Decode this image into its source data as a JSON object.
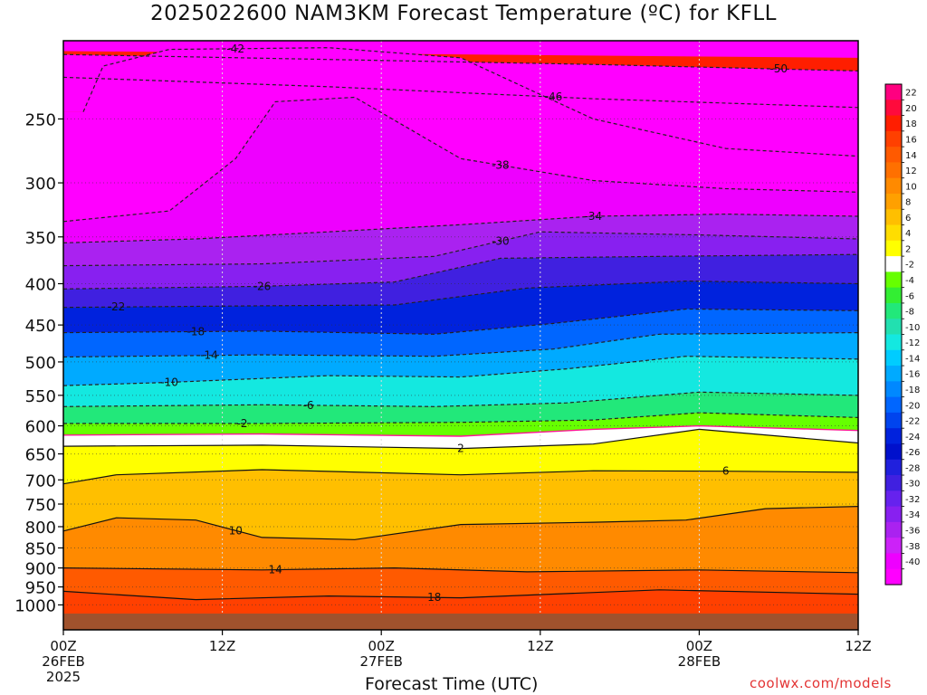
{
  "chart_data": {
    "type": "heatmap",
    "title": "2025022600 NAM3KM Forecast Temperature (ºC) for KFLL",
    "xlabel": "Forecast Time (UTC)",
    "ylabel": "",
    "x_ticks": [
      {
        "hours": 0,
        "lines": [
          "00Z",
          "26FEB",
          "2025"
        ]
      },
      {
        "hours": 12,
        "lines": [
          "12Z"
        ]
      },
      {
        "hours": 24,
        "lines": [
          "00Z",
          "27FEB"
        ]
      },
      {
        "hours": 36,
        "lines": [
          "12Z"
        ]
      },
      {
        "hours": 48,
        "lines": [
          "00Z",
          "28FEB"
        ]
      },
      {
        "hours": 60,
        "lines": [
          "12Z"
        ]
      }
    ],
    "xlim_hours": [
      0,
      60
    ],
    "y_ticks_hpa": [
      250,
      300,
      350,
      400,
      450,
      500,
      550,
      600,
      650,
      700,
      750,
      800,
      850,
      900,
      950,
      1000
    ],
    "ylim_hpa": [
      200,
      1025
    ],
    "y_scale": "log-pressure (inverted)",
    "grid": true,
    "colorbar": {
      "ticks": [
        22,
        20,
        18,
        16,
        14,
        12,
        10,
        8,
        6,
        4,
        2,
        -2,
        -4,
        -6,
        -8,
        -10,
        -12,
        -14,
        -16,
        -18,
        -20,
        -22,
        -24,
        -26,
        -28,
        -30,
        -32,
        -34,
        -36,
        -38,
        -40
      ],
      "colors": [
        "#ff0080",
        "#ff0a3c",
        "#ff1e00",
        "#ff4000",
        "#ff5a00",
        "#ff7000",
        "#ff8a00",
        "#ffa000",
        "#ffbf00",
        "#ffdd00",
        "#ffff00",
        "#ffffff",
        "#66ff00",
        "#33ee33",
        "#22e87a",
        "#22e0b0",
        "#14e8e0",
        "#00ccff",
        "#00aaff",
        "#0088ff",
        "#0066ff",
        "#0044ee",
        "#0022dd",
        "#0010cc",
        "#2020dd",
        "#4020e0",
        "#6622ee",
        "#8820f0",
        "#aa22f0",
        "#cc22f8",
        "#ee00ff",
        "#ff00ff"
      ]
    },
    "contours": [
      {
        "level": -50,
        "label": "-50",
        "color": "#222222",
        "style": "dashed",
        "points": [
          [
            0,
            208
          ],
          [
            20,
            211
          ],
          [
            40,
            214
          ],
          [
            60,
            218
          ]
        ],
        "label_at": 54
      },
      {
        "level": -46,
        "label": "-46",
        "color": "#222222",
        "style": "dashed",
        "points": [
          [
            0,
            222
          ],
          [
            20,
            228
          ],
          [
            40,
            236
          ],
          [
            60,
            242
          ]
        ],
        "label_at": 37
      },
      {
        "level": -42,
        "label": "-42",
        "color": "#222222",
        "style": "dashed",
        "points": [
          [
            1.5,
            245
          ],
          [
            3,
            215
          ],
          [
            8,
            205
          ],
          [
            20,
            204
          ],
          [
            30,
            210
          ],
          [
            40,
            250
          ],
          [
            50,
            272
          ],
          [
            60,
            278
          ]
        ],
        "label_at": 13
      },
      {
        "level": -38,
        "label": "-38",
        "color": "#222222",
        "style": "dashed",
        "points": [
          [
            0,
            335
          ],
          [
            8,
            325
          ],
          [
            13,
            280
          ],
          [
            16,
            238
          ],
          [
            22,
            235
          ],
          [
            30,
            280
          ],
          [
            40,
            298
          ],
          [
            50,
            305
          ],
          [
            60,
            308
          ]
        ],
        "label_at": 33
      },
      {
        "level": -34,
        "label": "-34",
        "color": "#222222",
        "style": "dashed",
        "points": [
          [
            0,
            356
          ],
          [
            10,
            352
          ],
          [
            20,
            345
          ],
          [
            30,
            338
          ],
          [
            40,
            330
          ],
          [
            50,
            328
          ],
          [
            60,
            330
          ]
        ],
        "label_at": 40
      },
      {
        "level": -30,
        "label": "-30",
        "color": "#222222",
        "style": "dashed",
        "points": [
          [
            0,
            380
          ],
          [
            15,
            378
          ],
          [
            28,
            370
          ],
          [
            36,
            345
          ],
          [
            48,
            348
          ],
          [
            60,
            352
          ]
        ],
        "label_at": 33
      },
      {
        "level": -26,
        "label": "-26",
        "color": "#222222",
        "style": "dashed",
        "points": [
          [
            0,
            406
          ],
          [
            15,
            403
          ],
          [
            25,
            398
          ],
          [
            33,
            372
          ],
          [
            45,
            370
          ],
          [
            60,
            368
          ]
        ],
        "label_at": 15
      },
      {
        "level": -22,
        "label": "-22",
        "color": "#222222",
        "style": "dashed",
        "points": [
          [
            0,
            428
          ],
          [
            15,
            426
          ],
          [
            25,
            425
          ],
          [
            35,
            405
          ],
          [
            47,
            397
          ],
          [
            60,
            400
          ]
        ],
        "label_at": 4
      },
      {
        "level": -18,
        "label": "-18",
        "color": "#222222",
        "style": "dashed",
        "points": [
          [
            0,
            460
          ],
          [
            15,
            458
          ],
          [
            28,
            462
          ],
          [
            37,
            448
          ],
          [
            47,
            430
          ],
          [
            60,
            432
          ]
        ],
        "label_at": 10
      },
      {
        "level": -14,
        "label": "-14",
        "color": "#222222",
        "style": "dashed",
        "points": [
          [
            0,
            493
          ],
          [
            15,
            490
          ],
          [
            28,
            492
          ],
          [
            37,
            482
          ],
          [
            45,
            462
          ],
          [
            60,
            460
          ]
        ],
        "label_at": 11
      },
      {
        "level": -10,
        "label": "-10",
        "color": "#222222",
        "style": "dashed",
        "points": [
          [
            0,
            535
          ],
          [
            8,
            530
          ],
          [
            20,
            520
          ],
          [
            30,
            522
          ],
          [
            38,
            510
          ],
          [
            47,
            492
          ],
          [
            60,
            496
          ]
        ],
        "label_at": 8
      },
      {
        "level": -6,
        "label": "-6",
        "color": "#222222",
        "style": "dashed",
        "points": [
          [
            0,
            568
          ],
          [
            15,
            565
          ],
          [
            28,
            568
          ],
          [
            38,
            562
          ],
          [
            48,
            545
          ],
          [
            60,
            550
          ]
        ],
        "label_at": 18.5
      },
      {
        "level": -2,
        "label": "-2",
        "color": "#222222",
        "style": "dashed",
        "points": [
          [
            0,
            596
          ],
          [
            15,
            596
          ],
          [
            30,
            594
          ],
          [
            40,
            590
          ],
          [
            48,
            578
          ],
          [
            60,
            586
          ]
        ],
        "label_at": 13.5
      },
      {
        "level": 0,
        "label": "",
        "color": "#ff1493",
        "style": "solid",
        "points": [
          [
            0,
            616
          ],
          [
            15,
            614
          ],
          [
            30,
            618
          ],
          [
            40,
            606
          ],
          [
            48,
            600
          ],
          [
            60,
            608
          ]
        ],
        "label_at": null
      },
      {
        "level": 2,
        "label": "2",
        "color": "#111111",
        "style": "solid",
        "points": [
          [
            0,
            636
          ],
          [
            15,
            634
          ],
          [
            30,
            640
          ],
          [
            40,
            632
          ],
          [
            48,
            606
          ],
          [
            60,
            630
          ]
        ],
        "label_at": 30
      },
      {
        "level": 6,
        "label": "6",
        "color": "#111111",
        "style": "solid",
        "points": [
          [
            0,
            708
          ],
          [
            4,
            690
          ],
          [
            15,
            680
          ],
          [
            30,
            690
          ],
          [
            40,
            682
          ],
          [
            50,
            683
          ],
          [
            60,
            685
          ]
        ],
        "label_at": 50
      },
      {
        "level": 10,
        "label": "10",
        "color": "#111111",
        "style": "solid",
        "points": [
          [
            0,
            810
          ],
          [
            4,
            780
          ],
          [
            10,
            785
          ],
          [
            15,
            825
          ],
          [
            22,
            830
          ],
          [
            30,
            795
          ],
          [
            40,
            790
          ],
          [
            47,
            785
          ],
          [
            53,
            760
          ],
          [
            60,
            755
          ]
        ],
        "label_at": 13
      },
      {
        "level": 14,
        "label": "14",
        "color": "#111111",
        "style": "solid",
        "points": [
          [
            0,
            900
          ],
          [
            15,
            905
          ],
          [
            25,
            900
          ],
          [
            35,
            910
          ],
          [
            48,
            905
          ],
          [
            60,
            912
          ]
        ],
        "label_at": 16
      },
      {
        "level": 18,
        "label": "18",
        "color": "#111111",
        "style": "solid",
        "points": [
          [
            0,
            962
          ],
          [
            10,
            985
          ],
          [
            20,
            975
          ],
          [
            30,
            980
          ],
          [
            45,
            958
          ],
          [
            60,
            970
          ]
        ],
        "label_at": 28
      }
    ]
  },
  "xlabel_text": "Forecast Time (UTC)",
  "watermark": "coolwx.com/models"
}
